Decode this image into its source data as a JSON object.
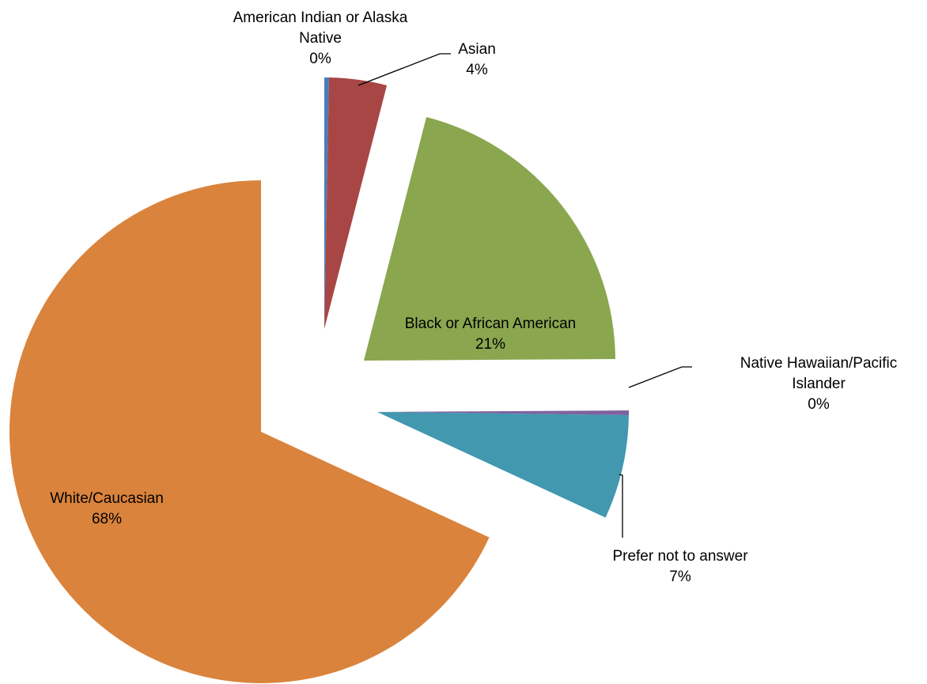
{
  "chart_data": {
    "type": "pie",
    "exploded": true,
    "slices": [
      {
        "category": "American Indian or Alaska Native",
        "label_lines": [
          "American Indian or Alaska",
          "Native"
        ],
        "percent_label": "0%",
        "value": 0.3,
        "color": "#4A7EBB"
      },
      {
        "category": "Asian",
        "label_lines": [
          "Asian"
        ],
        "percent_label": "4%",
        "value": 3.7,
        "color": "#A84645"
      },
      {
        "category": "Black or African American",
        "label_lines": [
          "Black or African American"
        ],
        "percent_label": "21%",
        "value": 20.9,
        "color": "#8AA64F"
      },
      {
        "category": "Native Hawaiian/Pacific Islander",
        "label_lines": [
          "Native Hawaiian/Pacific",
          "Islander"
        ],
        "percent_label": "0%",
        "value": 0.3,
        "color": "#7F63A0"
      },
      {
        "category": "Prefer not to answer",
        "label_lines": [
          "Prefer not to answer"
        ],
        "percent_label": "7%",
        "value": 6.7,
        "color": "#4198AF"
      },
      {
        "category": "White/Caucasian",
        "label_lines": [
          "White/Caucasian"
        ],
        "percent_label": "68%",
        "value": 68.1,
        "color": "#DA833C"
      }
    ]
  }
}
